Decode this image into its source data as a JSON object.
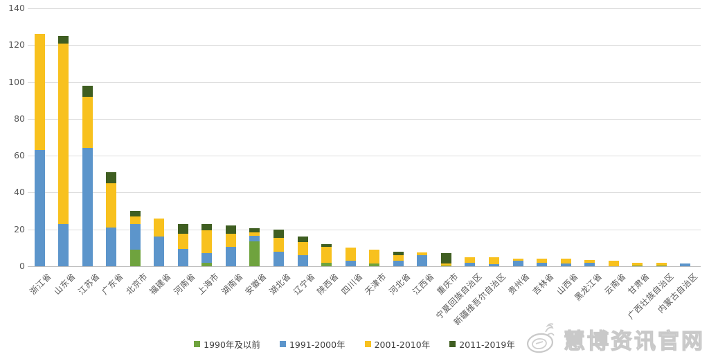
{
  "chart_data": {
    "type": "bar",
    "subtype": "stacked-vertical",
    "title": "",
    "xlabel": "",
    "ylabel": "",
    "ylim": [
      0,
      140
    ],
    "yticks": [
      0,
      20,
      40,
      60,
      80,
      100,
      120,
      140
    ],
    "grid": true,
    "legend_position": "bottom",
    "categories": [
      "浙江省",
      "山东省",
      "江苏省",
      "广东省",
      "北京市",
      "福建省",
      "河南省",
      "上海市",
      "湖南省",
      "安徽省",
      "湖北省",
      "辽宁省",
      "陕西省",
      "四川省",
      "天津市",
      "河北省",
      "江西省",
      "重庆市",
      "宁夏回族自治区",
      "新疆维吾尔自治区",
      "贵州省",
      "吉林省",
      "山西省",
      "黑龙江省",
      "云南省",
      "甘肃省",
      "广西壮族自治区",
      "内蒙古自治区"
    ],
    "series": [
      {
        "name": "1990年及以前",
        "color": "#6fa33e",
        "values": [
          0,
          0,
          0,
          0,
          9,
          0,
          0,
          2,
          0,
          13.5,
          0,
          0,
          2,
          0,
          1.5,
          0,
          0,
          0.5,
          0,
          0,
          0,
          0,
          0,
          0,
          0,
          0.5,
          0.5,
          0
        ]
      },
      {
        "name": "1991-2000年",
        "color": "#5c95cb",
        "values": [
          63,
          23,
          64,
          21,
          14,
          16,
          9.5,
          5,
          10.5,
          3,
          8,
          6,
          0,
          3,
          0,
          3,
          6,
          0,
          2,
          1,
          3,
          2,
          1.5,
          2,
          0,
          0,
          0,
          1.5
        ]
      },
      {
        "name": "2001-2010年",
        "color": "#f8c11e",
        "values": [
          63,
          98,
          28,
          24,
          4,
          10,
          8,
          12.5,
          7,
          2,
          7.5,
          7,
          8.5,
          7,
          7.5,
          3,
          1.5,
          1,
          3,
          4,
          1,
          2,
          2.5,
          1.5,
          3,
          1.5,
          1.5,
          0
        ]
      },
      {
        "name": "2011-2019年",
        "color": "#3f5e21",
        "values": [
          0,
          4,
          6,
          6,
          3,
          0,
          5.5,
          3.5,
          4.5,
          2,
          4.5,
          3,
          1.5,
          0,
          0,
          2,
          0,
          5.5,
          0,
          0,
          0,
          0,
          0,
          0,
          0,
          0,
          0,
          0
        ]
      }
    ],
    "totals": [
      126,
      125,
      98,
      51,
      30,
      26,
      23,
      23,
      22,
      20.5,
      20,
      16,
      12,
      10,
      9,
      8,
      7.5,
      7,
      5,
      5,
      4,
      4,
      4,
      3.5,
      3,
      2,
      2,
      1.5
    ]
  },
  "axis_colors": {
    "tick_text": "#595959",
    "gridline": "#dcdcdc",
    "baseline": "#bdbdbd"
  },
  "watermark": {
    "text": "慧博资讯官网",
    "logo": "huibo-logo"
  }
}
